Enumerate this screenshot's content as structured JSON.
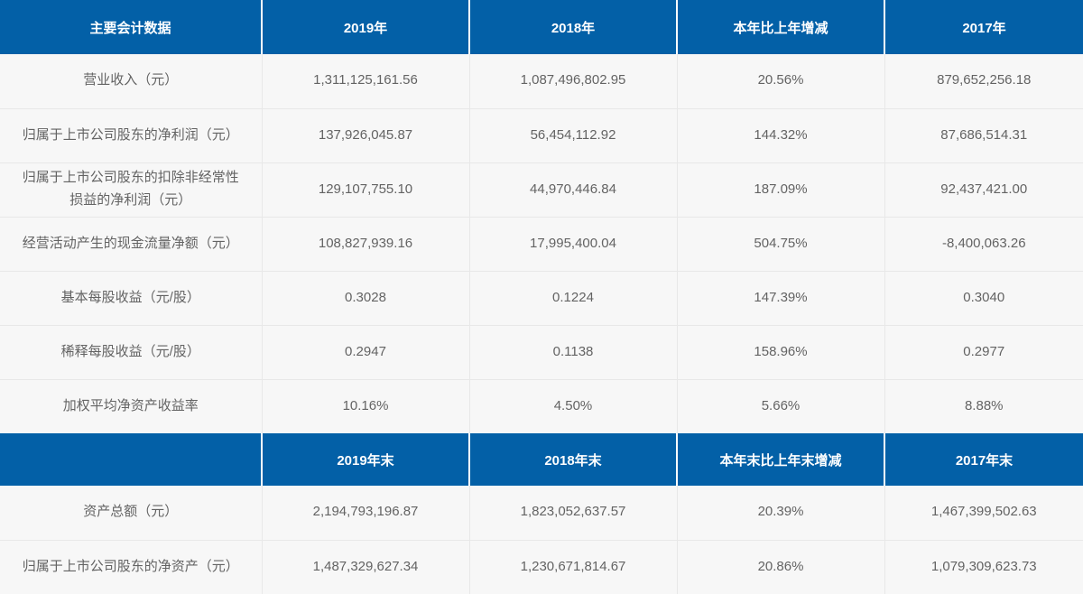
{
  "table": {
    "colors": {
      "header_bg": "#0360A7",
      "header_text": "#FFFFFF",
      "row_bg": "#F7F7F7",
      "cell_text": "#636363",
      "divider": "#E8E8E8"
    },
    "section1": {
      "headers": [
        "主要会计数据",
        "2019年",
        "2018年",
        "本年比上年增减",
        "2017年"
      ],
      "rows": [
        [
          "营业收入（元）",
          "1,311,125,161.56",
          "1,087,496,802.95",
          "20.56%",
          "879,652,256.18"
        ],
        [
          "归属于上市公司股东的净利润（元）",
          "137,926,045.87",
          "56,454,112.92",
          "144.32%",
          "87,686,514.31"
        ],
        [
          "归属于上市公司股东的扣除非经常性损益的净利润（元）",
          "129,107,755.10",
          "44,970,446.84",
          "187.09%",
          "92,437,421.00"
        ],
        [
          "经营活动产生的现金流量净额（元）",
          "108,827,939.16",
          "17,995,400.04",
          "504.75%",
          "-8,400,063.26"
        ],
        [
          "基本每股收益（元/股）",
          "0.3028",
          "0.1224",
          "147.39%",
          "0.3040"
        ],
        [
          "稀释每股收益（元/股）",
          "0.2947",
          "0.1138",
          "158.96%",
          "0.2977"
        ],
        [
          "加权平均净资产收益率",
          "10.16%",
          "4.50%",
          "5.66%",
          "8.88%"
        ]
      ]
    },
    "section2": {
      "headers": [
        "",
        "2019年末",
        "2018年末",
        "本年末比上年末增减",
        "2017年末"
      ],
      "rows": [
        [
          "资产总额（元）",
          "2,194,793,196.87",
          "1,823,052,637.57",
          "20.39%",
          "1,467,399,502.63"
        ],
        [
          "归属于上市公司股东的净资产（元）",
          "1,487,329,627.34",
          "1,230,671,814.67",
          "20.86%",
          "1,079,309,623.73"
        ]
      ]
    }
  }
}
